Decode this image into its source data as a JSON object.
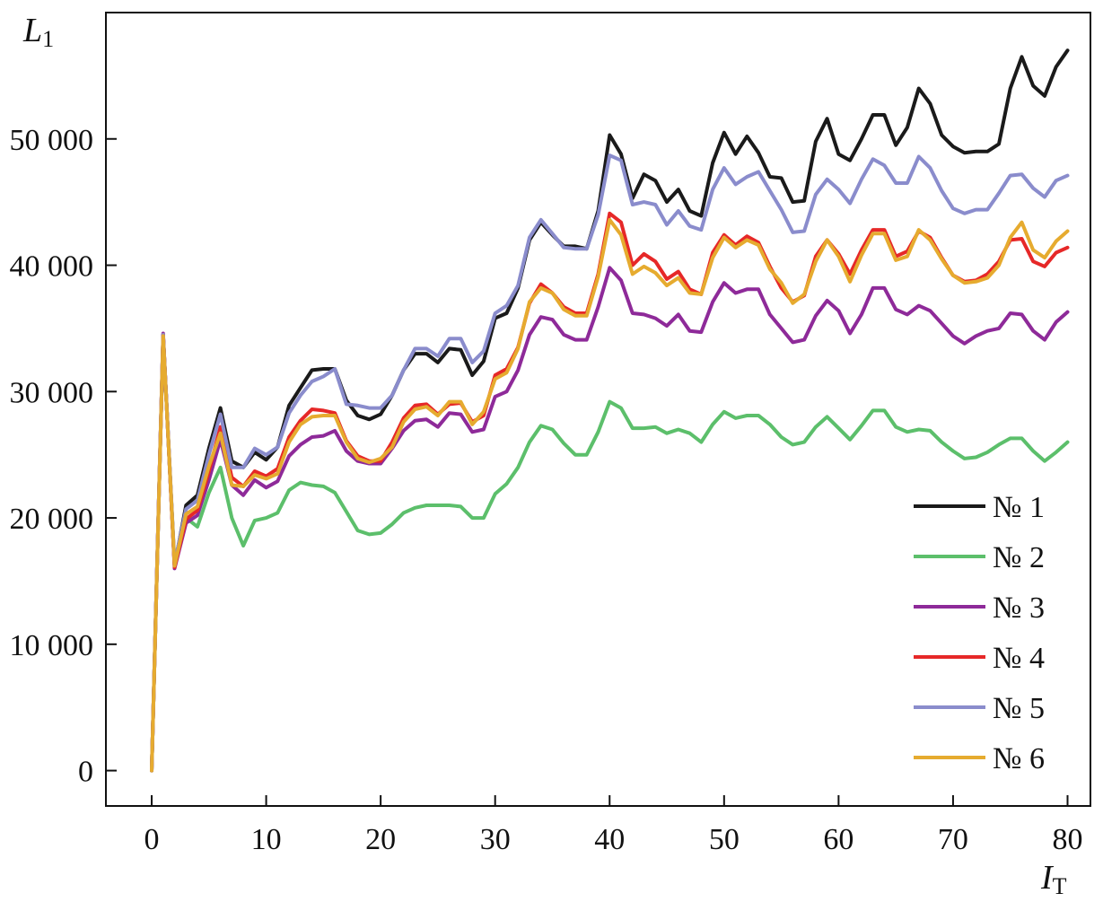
{
  "chart_data": {
    "type": "line",
    "title": "",
    "xlabel": "I",
    "xlabel_sub": "T",
    "ylabel": "L",
    "ylabel_sub": "1",
    "xlim": [
      -4,
      82
    ],
    "ylim": [
      -2800,
      60000
    ],
    "x_ticks": [
      0,
      10,
      20,
      30,
      40,
      50,
      60,
      70,
      80
    ],
    "x_tick_labels": [
      "0",
      "10",
      "20",
      "30",
      "40",
      "50",
      "60",
      "70",
      "80"
    ],
    "y_ticks": [
      0,
      10000,
      20000,
      30000,
      40000,
      50000
    ],
    "y_tick_labels": [
      "0",
      "10 000",
      "20 000",
      "30 000",
      "40 000",
      "50 000"
    ],
    "grid": false,
    "legend_position": "bottom-right",
    "x": [
      0,
      1,
      2,
      3,
      4,
      5,
      6,
      7,
      8,
      9,
      10,
      11,
      12,
      13,
      14,
      15,
      16,
      17,
      18,
      19,
      20,
      21,
      22,
      23,
      24,
      25,
      26,
      27,
      28,
      29,
      30,
      31,
      32,
      33,
      34,
      35,
      36,
      37,
      38,
      39,
      40,
      41,
      42,
      43,
      44,
      45,
      46,
      47,
      48,
      49,
      50,
      51,
      52,
      53,
      54,
      55,
      56,
      57,
      58,
      59,
      60,
      61,
      62,
      63,
      64,
      65,
      66,
      67,
      68,
      69,
      70,
      71,
      72,
      73,
      74,
      75,
      76,
      77,
      78,
      79,
      80
    ],
    "series": [
      {
        "name": "№ 1",
        "color": "#1a1a1a",
        "values": [
          0,
          34500,
          16200,
          21000,
          21800,
          25500,
          28700,
          24500,
          24000,
          25200,
          24600,
          25600,
          28900,
          30300,
          31700,
          31800,
          31800,
          29300,
          28100,
          27800,
          28200,
          29700,
          31700,
          33000,
          33000,
          32300,
          33400,
          33300,
          31300,
          32400,
          35800,
          36200,
          38200,
          42000,
          43400,
          42400,
          41500,
          41500,
          41300,
          44300,
          50300,
          48800,
          45300,
          47200,
          46700,
          45000,
          46000,
          44300,
          43900,
          48100,
          50500,
          48800,
          50200,
          48900,
          47000,
          46900,
          45000,
          45100,
          49800,
          51600,
          48800,
          48300,
          50000,
          51900,
          51900,
          49500,
          50900,
          54000,
          52800,
          50300,
          49400,
          48900,
          49000,
          49000,
          49600,
          54000,
          56500,
          54200,
          53400,
          55700,
          57000
        ]
      },
      {
        "name": "№ 2",
        "color": "#5cbf6b",
        "values": [
          0,
          34400,
          16300,
          20000,
          19300,
          22000,
          24000,
          20000,
          17800,
          19800,
          20000,
          20400,
          22200,
          22800,
          22600,
          22500,
          22000,
          20500,
          19000,
          18700,
          18800,
          19500,
          20400,
          20800,
          21000,
          21000,
          21000,
          20900,
          20000,
          20000,
          21900,
          22700,
          24000,
          26000,
          27300,
          27000,
          25900,
          25000,
          25000,
          26800,
          29200,
          28700,
          27100,
          27100,
          27200,
          26700,
          27000,
          26700,
          26000,
          27400,
          28400,
          27900,
          28100,
          28100,
          27400,
          26400,
          25800,
          26000,
          27200,
          28000,
          27100,
          26200,
          27300,
          28500,
          28500,
          27200,
          26800,
          27000,
          26900,
          26000,
          25300,
          24700,
          24800,
          25200,
          25800,
          26300,
          26300,
          25300,
          24500,
          25200,
          26000
        ]
      },
      {
        "name": "№ 3",
        "color": "#8e2a99",
        "values": [
          0,
          34600,
          16000,
          19600,
          20200,
          23000,
          26200,
          22600,
          21800,
          23000,
          22400,
          22900,
          24900,
          25800,
          26400,
          26500,
          26900,
          25300,
          24500,
          24300,
          24300,
          25500,
          26900,
          27700,
          27800,
          27200,
          28300,
          28200,
          26800,
          27000,
          29600,
          30000,
          31700,
          34500,
          35900,
          35700,
          34500,
          34100,
          34100,
          36700,
          39800,
          38800,
          36200,
          36100,
          35800,
          35200,
          36100,
          34800,
          34700,
          37100,
          38600,
          37800,
          38100,
          38100,
          36100,
          35000,
          33900,
          34100,
          36000,
          37200,
          36400,
          34600,
          36100,
          38200,
          38200,
          36500,
          36100,
          36800,
          36400,
          35400,
          34400,
          33800,
          34400,
          34800,
          35000,
          36200,
          36100,
          34800,
          34100,
          35500,
          36300
        ]
      },
      {
        "name": "№ 4",
        "color": "#e62828",
        "values": [
          0,
          34500,
          16100,
          19900,
          20600,
          23700,
          27200,
          23200,
          22500,
          23700,
          23300,
          23900,
          26400,
          27700,
          28600,
          28500,
          28300,
          26100,
          24900,
          24500,
          24500,
          26000,
          27900,
          28900,
          29000,
          28200,
          29000,
          29100,
          27600,
          28100,
          31300,
          31800,
          33500,
          37000,
          38500,
          37800,
          36700,
          36200,
          36200,
          39300,
          44100,
          43400,
          40000,
          40900,
          40300,
          38900,
          39500,
          38100,
          37700,
          41000,
          42400,
          41600,
          42300,
          41800,
          39900,
          38200,
          37100,
          37600,
          40700,
          42000,
          40900,
          39300,
          41200,
          42800,
          42800,
          40700,
          41100,
          42700,
          42200,
          40600,
          39200,
          38700,
          38800,
          39300,
          40300,
          42000,
          42100,
          40300,
          39900,
          41000,
          41400
        ]
      },
      {
        "name": "№ 5",
        "color": "#8a8ccc",
        "values": [
          0,
          34500,
          16400,
          20700,
          21400,
          25000,
          28200,
          24000,
          24000,
          25500,
          25000,
          25600,
          28300,
          29700,
          30800,
          31200,
          31800,
          29000,
          28900,
          28700,
          28700,
          29700,
          31700,
          33400,
          33400,
          32800,
          34200,
          34200,
          32300,
          33200,
          36200,
          36800,
          38400,
          42200,
          43600,
          42500,
          41400,
          41300,
          41300,
          44000,
          48700,
          48300,
          44800,
          45000,
          44800,
          43200,
          44300,
          43100,
          42800,
          46000,
          47700,
          46400,
          47000,
          47400,
          45900,
          44400,
          42600,
          42700,
          45600,
          46800,
          46000,
          44900,
          46800,
          48400,
          47900,
          46500,
          46500,
          48600,
          47700,
          45900,
          44500,
          44100,
          44400,
          44400,
          45700,
          47100,
          47200,
          46100,
          45400,
          46700,
          47100
        ]
      },
      {
        "name": "№ 6",
        "color": "#e6ab2f",
        "values": [
          0,
          34400,
          16200,
          20300,
          20900,
          24100,
          26700,
          22600,
          22500,
          23400,
          23100,
          23500,
          26000,
          27400,
          28000,
          28100,
          28100,
          26000,
          24700,
          24400,
          24700,
          25600,
          27600,
          28600,
          28800,
          28100,
          29200,
          29200,
          27400,
          28400,
          31000,
          31500,
          33400,
          37100,
          38200,
          37800,
          36500,
          36000,
          36000,
          39100,
          43600,
          42400,
          39300,
          39900,
          39400,
          38400,
          39000,
          37800,
          37700,
          40600,
          42200,
          41400,
          42000,
          41600,
          39700,
          38600,
          37000,
          37700,
          40300,
          42000,
          40700,
          38700,
          40800,
          42500,
          42500,
          40400,
          40700,
          42800,
          42000,
          40500,
          39200,
          38600,
          38700,
          39000,
          40000,
          42200,
          43400,
          41200,
          40600,
          41900,
          42700
        ]
      }
    ]
  }
}
